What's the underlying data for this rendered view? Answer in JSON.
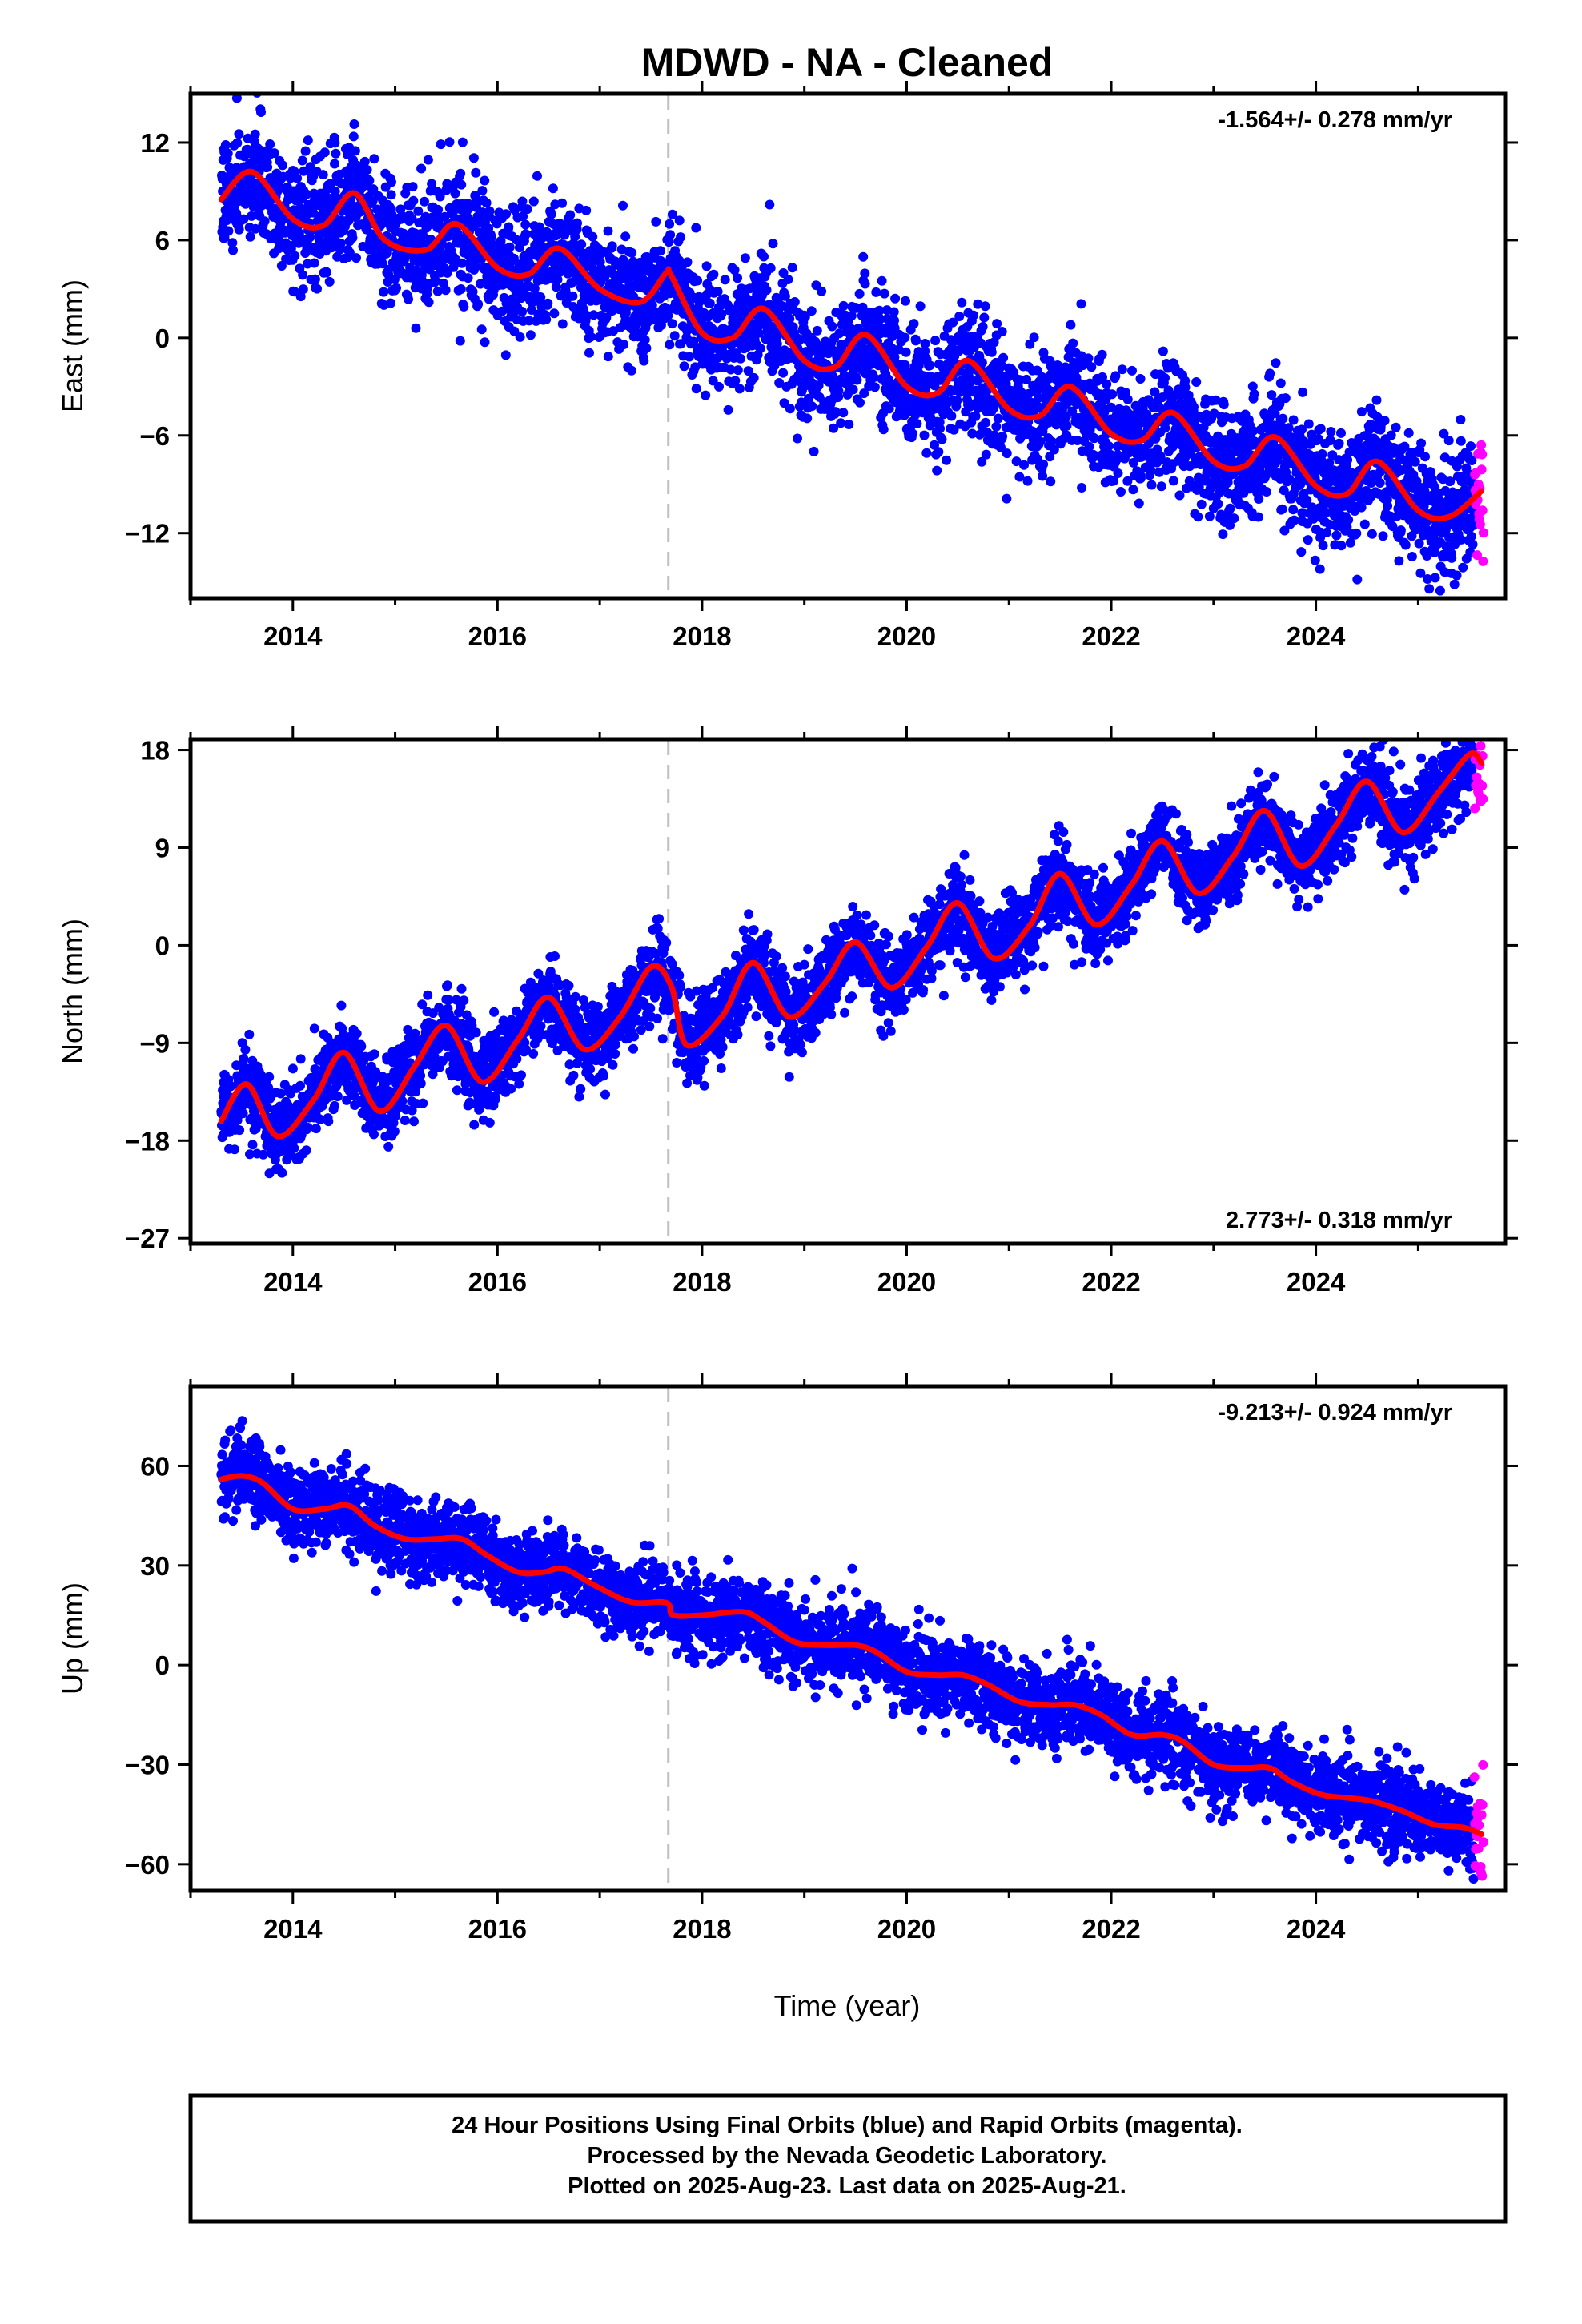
{
  "title": "MDWD  - NA - Cleaned",
  "colors": {
    "final_orbits": "#0000ff",
    "rapid_orbits": "#ff00ff",
    "model": "#ff0000",
    "event_line": "#c0c0c0"
  },
  "xlabel": "Time (year)",
  "xticks": [
    2014,
    2016,
    2018,
    2020,
    2022,
    2024
  ],
  "caption": {
    "line1": "24 Hour Positions Using Final Orbits (blue) and Rapid Orbits (magenta).",
    "line2": "Processed by the Nevada Geodetic Laboratory.",
    "line3": "Plotted on 2025-Aug-23. Last data on 2025-Aug-21."
  },
  "chart_data": [
    {
      "type": "scatter",
      "component": "east",
      "ylabel": "East (mm)",
      "rate_label": "-1.564+/- 0.278 mm/yr",
      "xlim": [
        2013.0,
        2025.85
      ],
      "ylim": [
        -16,
        15
      ],
      "yticks": [
        12,
        6,
        0,
        -6,
        -12
      ],
      "yticklabels": [
        "12",
        "6",
        "0",
        "−6",
        "−12"
      ],
      "event_line_x": 2017.67,
      "data_start": 2013.3,
      "rapid_start": 2025.55,
      "data_end": 2025.64,
      "trend": {
        "start": 8.6,
        "rate": -1.564
      },
      "seasonal": {
        "amplitude": 1.7,
        "peak_phase": 0.62
      },
      "scatter": 1.8,
      "model_x": [
        2013.3,
        2013.6,
        2014.0,
        2014.3,
        2014.6,
        2014.9,
        2015.3,
        2015.6,
        2016.0,
        2016.3,
        2016.6,
        2017.0,
        2017.4,
        2017.65,
        2017.7,
        2018.0,
        2018.3,
        2018.6,
        2019.0,
        2019.3,
        2019.6,
        2020.0,
        2020.3,
        2020.6,
        2021.0,
        2021.3,
        2021.6,
        2022.0,
        2022.3,
        2022.6,
        2023.0,
        2023.3,
        2023.6,
        2024.0,
        2024.3,
        2024.6,
        2025.0,
        2025.3,
        2025.62
      ],
      "model_y": [
        8.5,
        10.2,
        7.3,
        6.9,
        8.9,
        6.0,
        5.4,
        7.0,
        4.3,
        3.9,
        5.5,
        3.0,
        2.2,
        4.0,
        3.8,
        0.3,
        0.0,
        1.8,
        -1.4,
        -1.8,
        0.2,
        -3.0,
        -3.4,
        -1.4,
        -4.4,
        -4.8,
        -3.0,
        -5.9,
        -6.3,
        -4.6,
        -7.6,
        -7.9,
        -6.1,
        -9.1,
        -9.6,
        -7.6,
        -10.6,
        -11.0,
        -9.4
      ]
    },
    {
      "type": "scatter",
      "component": "north",
      "ylabel": "North (mm)",
      "rate_label": "2.773+/- 0.318 mm/yr",
      "xlim": [
        2013.0,
        2025.85
      ],
      "ylim": [
        -27.5,
        19
      ],
      "yticks": [
        18,
        9,
        0,
        -9,
        -18,
        -27
      ],
      "yticklabels": [
        "18",
        "9",
        "0",
        "−9",
        "−18",
        "−27"
      ],
      "event_line_x": 2017.67,
      "data_start": 2013.3,
      "rapid_start": 2025.55,
      "data_end": 2025.64,
      "trend": {
        "start": -19.5,
        "rate": 2.773
      },
      "seasonal": {
        "amplitude": 3.0,
        "peak_phase": 0.52
      },
      "scatter": 1.9,
      "model_x": [
        2013.3,
        2013.55,
        2013.85,
        2014.2,
        2014.5,
        2014.85,
        2015.2,
        2015.5,
        2015.85,
        2016.2,
        2016.5,
        2016.85,
        2017.2,
        2017.5,
        2017.7,
        2017.85,
        2018.2,
        2018.5,
        2018.85,
        2019.2,
        2019.5,
        2019.85,
        2020.2,
        2020.5,
        2020.85,
        2021.2,
        2021.5,
        2021.85,
        2022.2,
        2022.5,
        2022.85,
        2023.2,
        2023.5,
        2023.85,
        2024.2,
        2024.5,
        2024.85,
        2025.2,
        2025.5,
        2025.62
      ],
      "model_y": [
        -16.2,
        -12.8,
        -17.6,
        -14.3,
        -9.9,
        -15.3,
        -11.0,
        -7.4,
        -12.6,
        -8.7,
        -4.8,
        -9.6,
        -6.6,
        -2.0,
        -3.8,
        -9.2,
        -6.5,
        -1.6,
        -6.6,
        -3.5,
        0.3,
        -3.9,
        -0.1,
        3.9,
        -1.2,
        1.8,
        6.6,
        1.9,
        5.6,
        9.6,
        4.8,
        8.3,
        12.4,
        7.3,
        11.1,
        15.1,
        10.4,
        14.1,
        17.6,
        16.8
      ]
    },
    {
      "type": "scatter",
      "component": "up",
      "ylabel": "Up (mm)",
      "rate_label": "-9.213+/- 0.924 mm/yr",
      "xlim": [
        2013.0,
        2025.85
      ],
      "ylim": [
        -68,
        84
      ],
      "yticks": [
        60,
        30,
        0,
        -30,
        -60
      ],
      "yticklabels": [
        "60",
        "30",
        "0",
        "−30",
        "−60"
      ],
      "event_line_x": 2017.67,
      "data_start": 2013.3,
      "rapid_start": 2025.55,
      "data_end": 2025.64,
      "trend": {
        "start": 60,
        "rate": -9.213
      },
      "seasonal": {
        "amplitude": 2.5,
        "peak_phase": 0.4
      },
      "scatter": 6.0,
      "model_x": [
        2013.3,
        2013.5,
        2013.7,
        2014.0,
        2014.3,
        2014.55,
        2014.8,
        2015.1,
        2015.4,
        2015.65,
        2015.9,
        2016.2,
        2016.45,
        2016.65,
        2016.95,
        2017.3,
        2017.6,
        2017.68,
        2017.72,
        2018.0,
        2018.4,
        2018.6,
        2018.9,
        2019.2,
        2019.5,
        2019.7,
        2020.0,
        2020.3,
        2020.55,
        2020.8,
        2021.1,
        2021.4,
        2021.65,
        2021.9,
        2022.2,
        2022.5,
        2022.7,
        2023.0,
        2023.3,
        2023.55,
        2023.75,
        2024.05,
        2024.3,
        2024.55,
        2024.85,
        2025.15,
        2025.45,
        2025.62
      ],
      "model_y": [
        56,
        57,
        55,
        47,
        47,
        48,
        42,
        38,
        38,
        38,
        33,
        28,
        28,
        29,
        24,
        19,
        19,
        18,
        15,
        15,
        16,
        13,
        7,
        6,
        6,
        4,
        -2,
        -3,
        -3,
        -6,
        -11,
        -12,
        -12,
        -15,
        -21,
        -21,
        -23,
        -30,
        -31,
        -31,
        -35,
        -39,
        -40,
        -41,
        -44,
        -48,
        -49,
        -51
      ]
    }
  ]
}
